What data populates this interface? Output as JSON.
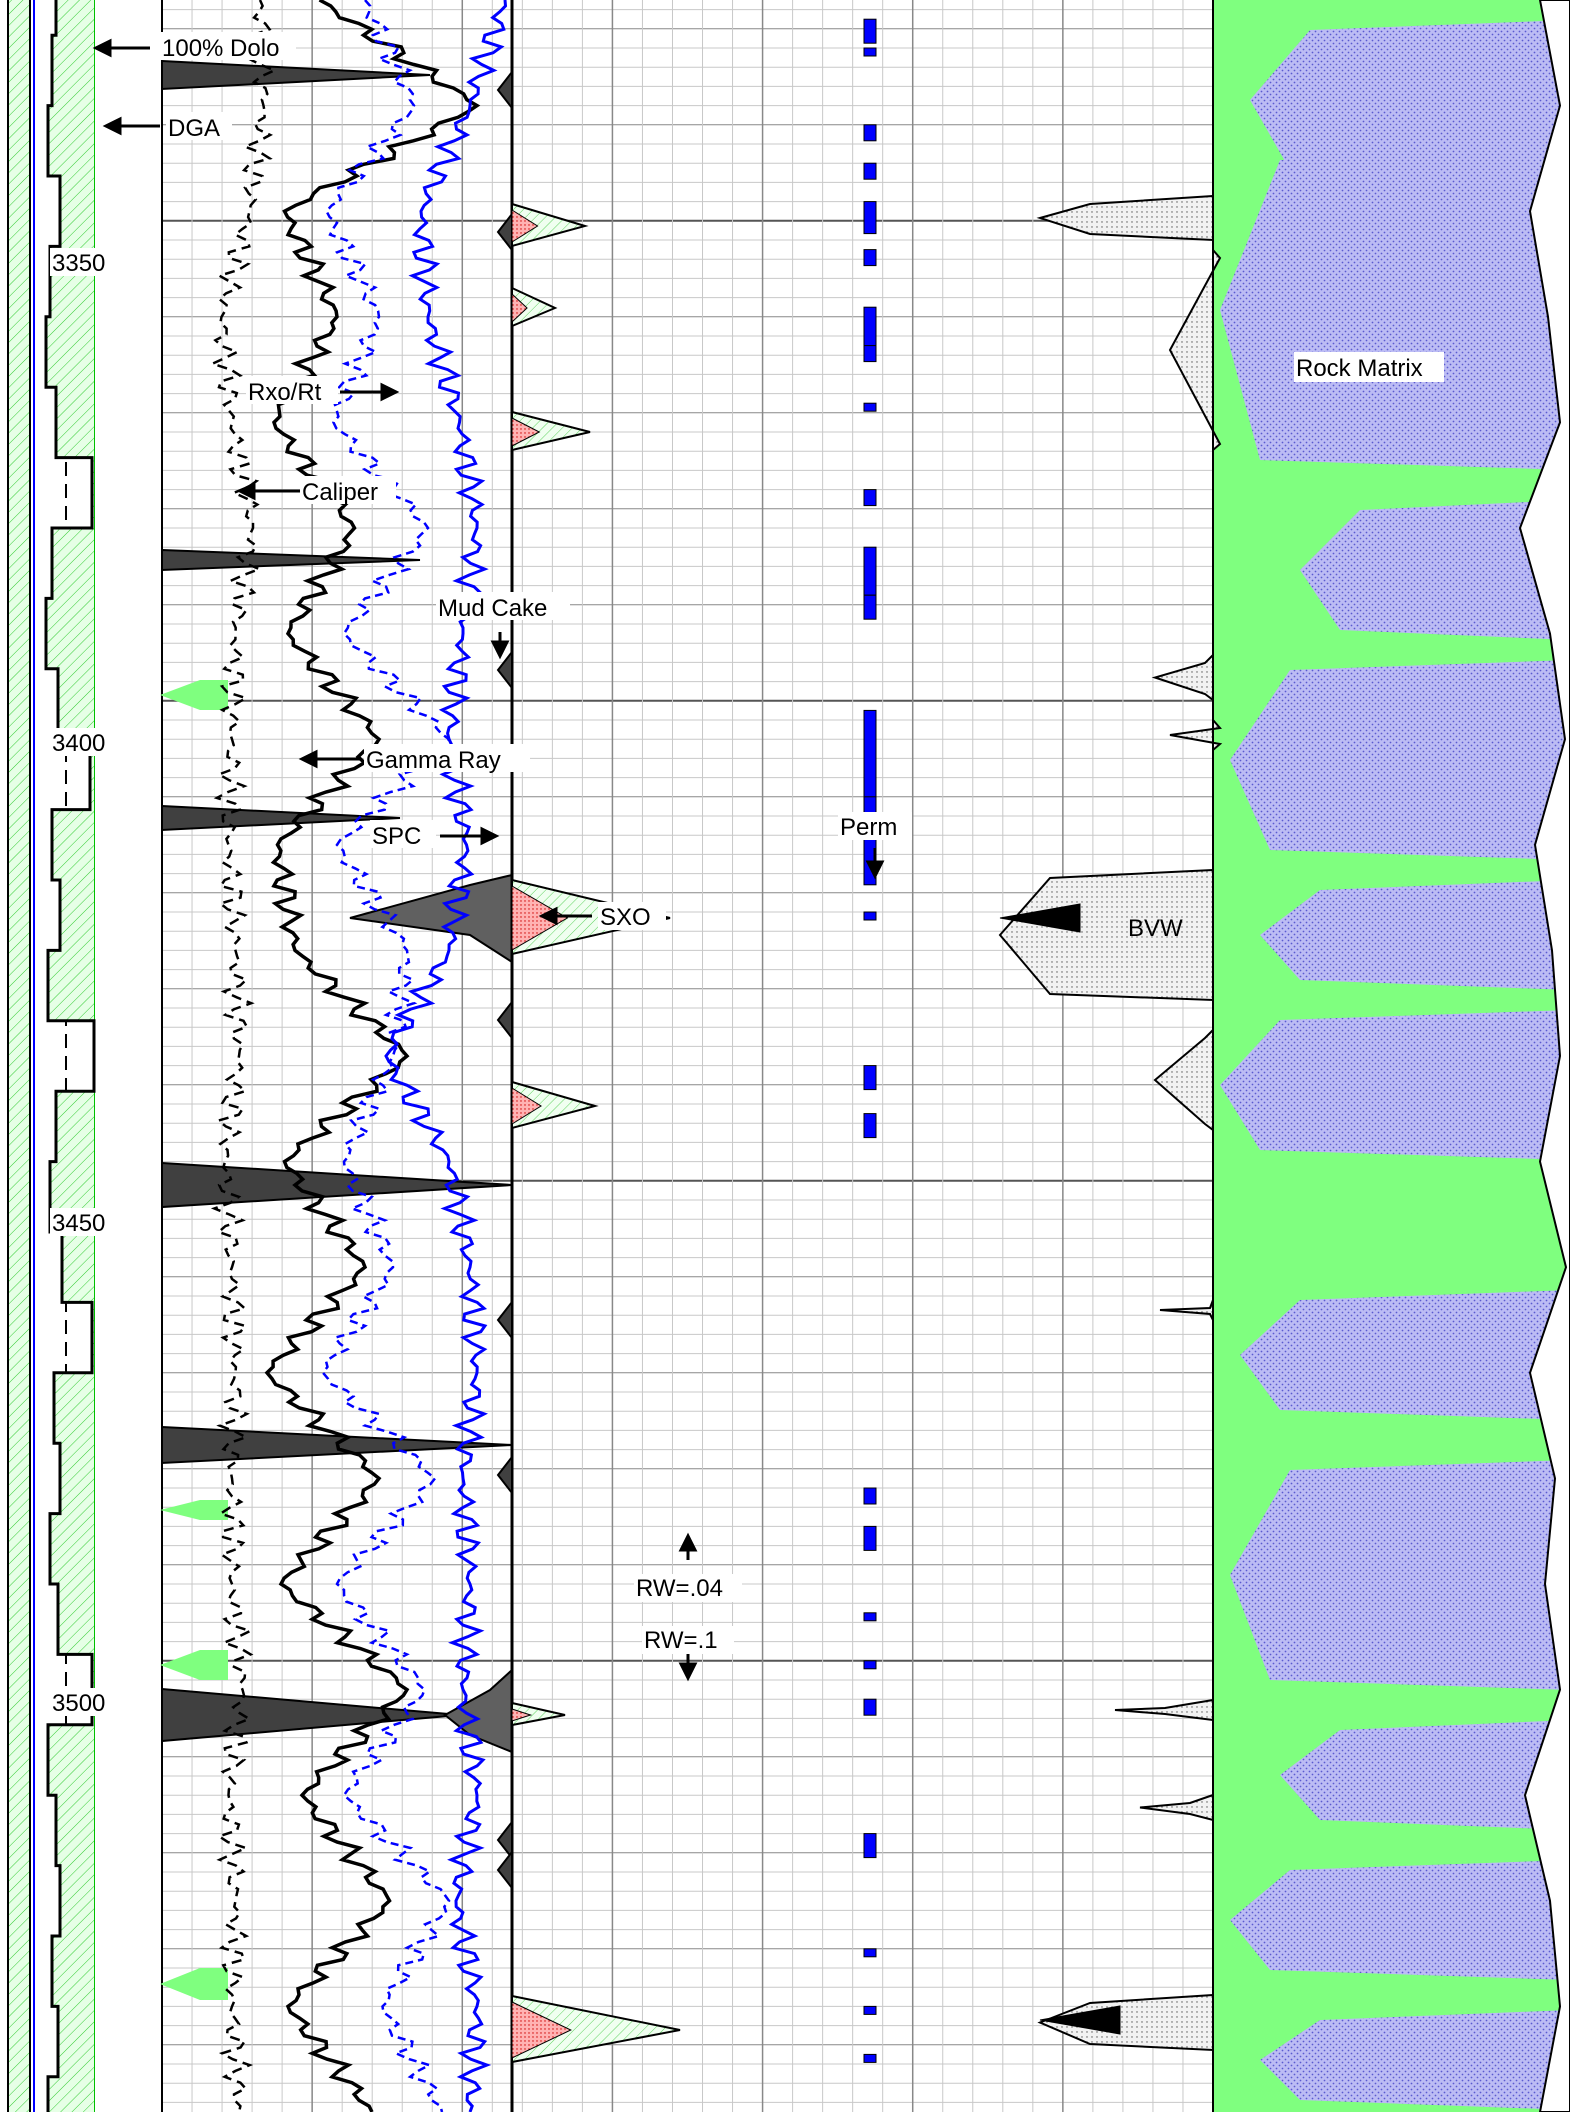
{
  "chart_data": {
    "type": "line",
    "title": "",
    "depth_axis": {
      "tick_labels": [
        "3350",
        "3400",
        "3450",
        "3500"
      ],
      "values": [
        3350,
        3400,
        3450,
        3500
      ],
      "range": [
        3327,
        3547
      ]
    },
    "grid": true,
    "tracks": [
      {
        "name": "track-1",
        "curves": [
          {
            "name": "DGA",
            "color": "#000000",
            "style": "solid",
            "fill": "#7fff7f"
          }
        ]
      },
      {
        "name": "track-2",
        "curves": [
          {
            "name": "Caliper",
            "color": "#000000",
            "style": "dashed",
            "x": [
              0.28,
              0.29,
              0.25,
              0.17,
              0.2,
              0.26,
              0.21,
              0.2,
              0.19,
              0.21,
              0.22,
              0.18,
              0.2,
              0.21,
              0.2,
              0.2,
              0.23,
              0.19,
              0.21,
              0.2,
              0.22
            ]
          },
          {
            "name": "Gamma Ray",
            "color": "#000000",
            "style": "solid",
            "x": [
              0.45,
              0.9,
              0.35,
              0.5,
              0.32,
              0.55,
              0.36,
              0.62,
              0.33,
              0.38,
              0.7,
              0.35,
              0.58,
              0.3,
              0.62,
              0.34,
              0.7,
              0.4,
              0.65,
              0.36,
              0.6
            ]
          },
          {
            "name": "Rxo/Rt",
            "color": "#0000ff",
            "style": "dashed",
            "x": [
              0.58,
              0.72,
              0.47,
              0.62,
              0.49,
              0.76,
              0.52,
              0.82,
              0.5,
              0.7,
              0.66,
              0.52,
              0.66,
              0.46,
              0.78,
              0.5,
              0.75,
              0.52,
              0.82,
              0.63,
              0.8
            ]
          },
          {
            "name": "SPC",
            "color": "#0000ff",
            "style": "solid",
            "x": [
              0.98,
              0.88,
              0.74,
              0.76,
              0.85,
              0.9,
              0.86,
              0.82,
              0.87,
              0.82,
              0.64,
              0.82,
              0.88,
              0.9,
              0.86,
              0.88,
              0.86,
              0.9,
              0.84,
              0.9,
              0.88
            ]
          }
        ],
        "annotations": [
          "100% Dolo",
          "DGA",
          "Rxo/Rt",
          "Caliper",
          "Mud Cake",
          "Gamma Ray",
          "SPC",
          "SXO"
        ]
      },
      {
        "name": "track-3",
        "curves": [
          {
            "name": "SXO",
            "color": "#000000",
            "style": "solid",
            "fill": "#ff9999"
          }
        ],
        "annotations": [
          "RW=.04",
          "RW=.1",
          "Perm"
        ]
      },
      {
        "name": "track-4",
        "curves": [
          {
            "name": "BVW",
            "color": "#000000",
            "style": "solid",
            "fill": "#e8e8e8"
          }
        ],
        "annotations": [
          "BVW",
          "Rock Matrix"
        ]
      }
    ],
    "perm_flags_depths": [
      3329,
      3332,
      3340,
      3344,
      3348,
      3353,
      3359,
      3363,
      3369,
      3378,
      3384,
      3389,
      3401,
      3410,
      3422,
      3438,
      3443,
      3482,
      3486,
      3495,
      3500,
      3504,
      3518,
      3530,
      3536,
      3541
    ],
    "colors": {
      "shale": "#7fff7f",
      "porosity_fill": "#b8b8ff",
      "mudcake": "#404040",
      "curve_blue": "#0000ff",
      "perm_bar": "#0000ff",
      "sxo_fill": "#ff9999"
    }
  },
  "labels": {
    "dolo": "100% Dolo",
    "dga": "DGA",
    "rxo_rt": "Rxo/Rt",
    "caliper": "Caliper",
    "mud_cake": "Mud Cake",
    "gamma_ray": "Gamma Ray",
    "spc": "SPC",
    "sxo": "SXO",
    "perm": "Perm",
    "rw_04": "RW=.04",
    "rw_1": "RW=.1",
    "bvw": "BVW",
    "rock_matrix": "Rock Matrix"
  }
}
